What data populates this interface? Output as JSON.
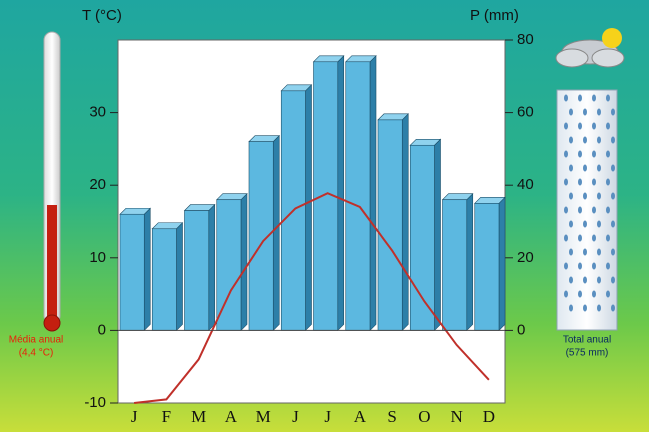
{
  "chart_data": {
    "type": "climograph",
    "y_label": "T (°C)",
    "y2_label": "P (mm)",
    "categories": [
      "J",
      "F",
      "M",
      "A",
      "M",
      "J",
      "J",
      "A",
      "S",
      "O",
      "N",
      "D"
    ],
    "ylim": [
      -10,
      40
    ],
    "yticks": [
      -10,
      0,
      10,
      20,
      30
    ],
    "y2lim": [
      -20,
      80
    ],
    "y2ticks": [
      0,
      20,
      40,
      60,
      80
    ],
    "series": [
      {
        "type": "bar",
        "axis": "y2",
        "color": "#5cb8e0",
        "values": [
          32,
          28,
          33,
          36,
          52,
          66,
          74,
          74,
          58,
          51,
          36,
          35
        ]
      },
      {
        "type": "line",
        "color": "#c0302a",
        "values": [
          -10,
          -9.5,
          -4,
          5.5,
          12.3,
          16.8,
          18.9,
          17,
          11,
          4,
          -2,
          -6.8
        ]
      }
    ],
    "annotations": [
      {
        "text": "Média anual",
        "color": "#e8200a"
      },
      {
        "text": "(4,4 °C)",
        "color": "#e8200a"
      },
      {
        "text": "Total anual",
        "color": "#0a2a60"
      },
      {
        "text": "(575 mm)",
        "color": "#0a2a60"
      }
    ]
  }
}
